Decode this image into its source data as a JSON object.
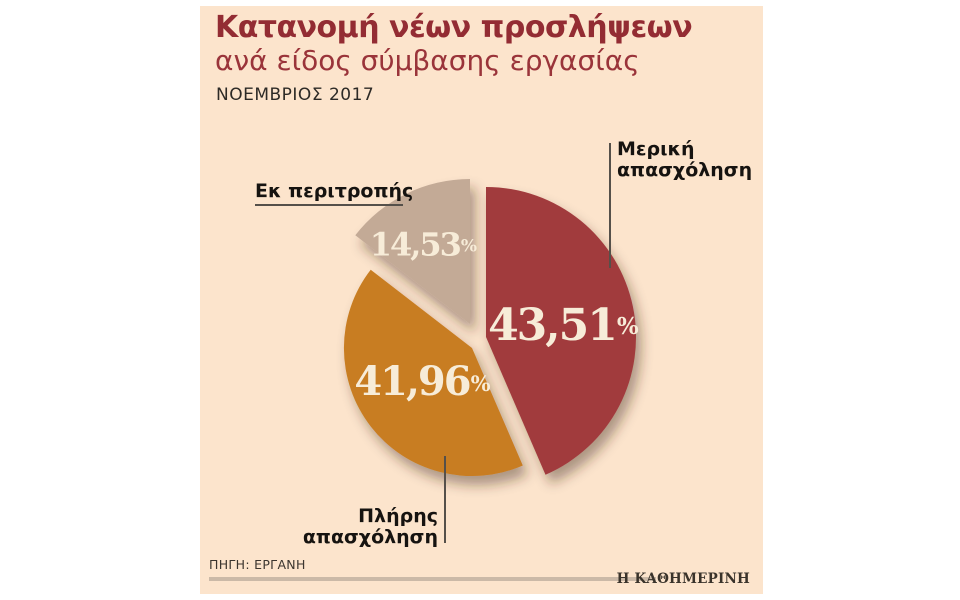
{
  "header": {
    "title": "Κατανομή νέων προσλήψεων",
    "subtitle": "ανά είδος σύμβασης εργασίας",
    "period": "ΝΟΕΜΒΡΙΟΣ 2017"
  },
  "chart_data": {
    "type": "pie",
    "title": "Κατανομή νέων προσλήψεων ανά είδος σύμβασης εργασίας",
    "subtitle": "ΝΟΕΜΒΡΙΟΣ 2017",
    "unit": "%",
    "start_angle_deg": 0,
    "direction": "clockwise",
    "exploded": true,
    "slices": [
      {
        "label": "Μερική απασχόληση",
        "label_lines": [
          "Μερική",
          "απασχόληση"
        ],
        "value": 43.51,
        "display": "43,51",
        "color": "#a13a3e"
      },
      {
        "label": "Πλήρης απασχόληση",
        "label_lines": [
          "Πλήρης",
          "απασχόληση"
        ],
        "value": 41.96,
        "display": "41,96",
        "color": "#c87d20"
      },
      {
        "label": "Εκ περιτροπής",
        "label_lines": [
          "Εκ περιτροπής"
        ],
        "value": 14.53,
        "display": "14,53",
        "color": "#c3aa96"
      }
    ],
    "value_text_color": "#f7ecd8",
    "legend_position": "callouts"
  },
  "colors": {
    "card_background": "#fce4cc",
    "title_red": "#932c33",
    "callout_line": "#55504a",
    "footer_rule": "#cbb9a7"
  },
  "footer": {
    "source": "ΠΗΓΗ: ΕΡΓΑΝΗ",
    "brand": "Η ΚΑΘΗΜΕΡΙΝΗ"
  }
}
